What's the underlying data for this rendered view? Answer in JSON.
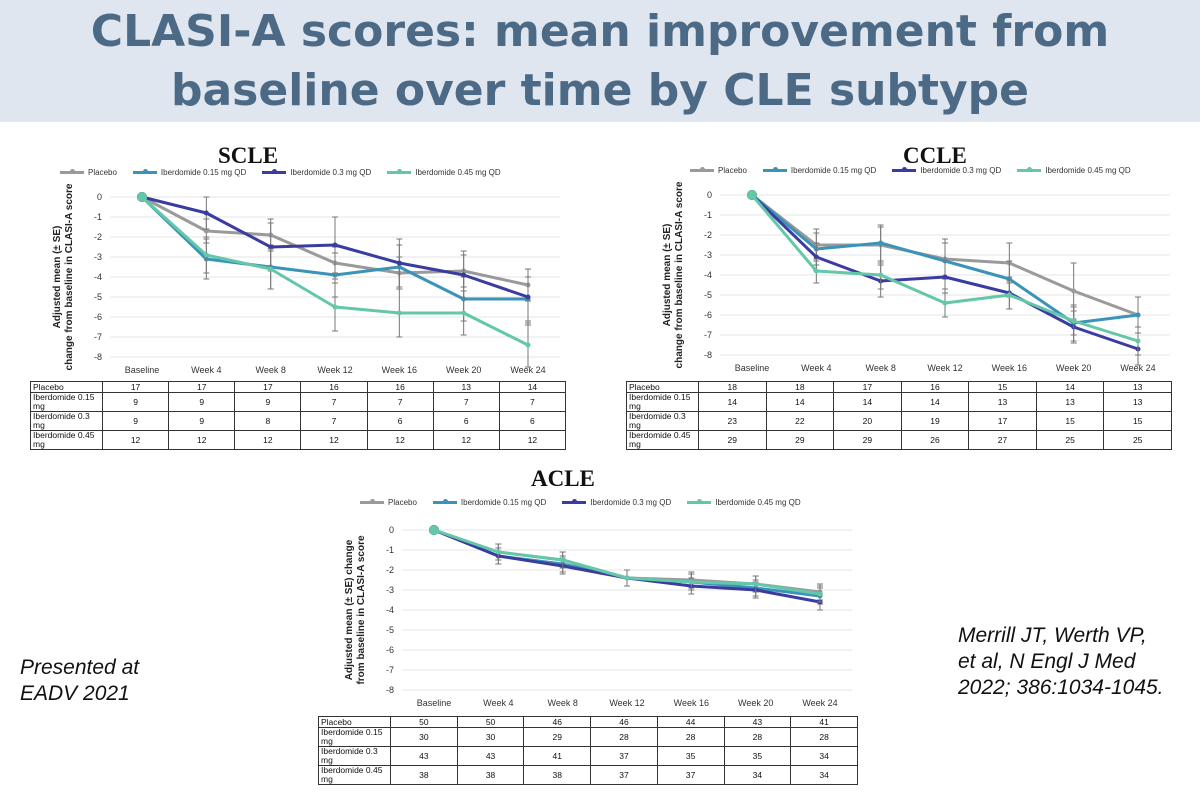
{
  "page": {
    "title_line1": "CLASI-A scores: mean improvement from",
    "title_line2": "baseline over time by CLE subtype",
    "presented": [
      "Presented at",
      "EADV 2021"
    ],
    "reference": [
      "Merrill JT, Werth VP,",
      "et al, N Engl J Med",
      "2022; 386:1034-1045."
    ]
  },
  "colors": {
    "placebo": "#9a9a9a",
    "ibd015": "#3a93b8",
    "ibd03": "#3b3ca0",
    "ibd045": "#63c7a8"
  },
  "legend": [
    "Placebo",
    "Iberdomide 0.15 mg QD",
    "Iberdomide 0.3 mg QD",
    "Iberdomide 0.45 mg QD"
  ],
  "chart_data": [
    {
      "type": "line",
      "title": "SCLE",
      "ylabel": "Adjusted mean (± SE) change from baseline in CLASI-A score",
      "xlabel": "",
      "categories": [
        "Baseline",
        "Week 4",
        "Week 8",
        "Week 12",
        "Week 16",
        "Week 20",
        "Week 24"
      ],
      "ylim": [
        -8,
        0
      ],
      "yticks": [
        0,
        -1,
        -2,
        -3,
        -4,
        -5,
        -6,
        -7,
        -8
      ],
      "legend_position": "top",
      "series": [
        {
          "name": "Placebo",
          "color_key": "placebo",
          "values": [
            0,
            -1.7,
            -1.9,
            -3.3,
            -3.8,
            -3.7,
            -4.4
          ],
          "se": [
            0,
            0.6,
            0.8,
            0.8,
            0.8,
            0.8,
            0.8
          ]
        },
        {
          "name": "Iberdomide 0.15 mg QD",
          "color_key": "ibd015",
          "values": [
            0,
            -3.1,
            -3.5,
            -3.9,
            -3.5,
            -5.1,
            -5.1
          ],
          "se": [
            0,
            1.0,
            1.1,
            1.1,
            1.1,
            1.1,
            1.1
          ]
        },
        {
          "name": "Iberdomide 0.3 mg QD",
          "color_key": "ibd03",
          "values": [
            0,
            -0.8,
            -2.5,
            -2.4,
            -3.3,
            -3.9,
            -5.0
          ],
          "se": [
            0,
            0.8,
            1.2,
            1.4,
            1.2,
            1.2,
            1.4
          ]
        },
        {
          "name": "Iberdomide 0.45 mg QD",
          "color_key": "ibd045",
          "values": [
            0,
            -2.9,
            -3.6,
            -5.5,
            -5.8,
            -5.8,
            -7.4
          ],
          "se": [
            0,
            0.9,
            1.0,
            1.2,
            1.2,
            1.1,
            1.1
          ]
        }
      ],
      "n_table": [
        {
          "label": "Placebo",
          "values": [
            "17",
            "17",
            "17",
            "16",
            "16",
            "13",
            "14"
          ]
        },
        {
          "label": "Iberdomide 0.15 mg",
          "values": [
            "9",
            "9",
            "9",
            "7",
            "7",
            "7",
            "7"
          ]
        },
        {
          "label": "Iberdomide 0.3 mg",
          "values": [
            "9",
            "9",
            "8",
            "7",
            "6",
            "6",
            "6"
          ]
        },
        {
          "label": "Iberdomide 0.45 mg",
          "values": [
            "12",
            "12",
            "12",
            "12",
            "12",
            "12",
            "12"
          ]
        }
      ]
    },
    {
      "type": "line",
      "title": "CCLE",
      "ylabel": "Adjusted mean (± SE) change from baseline in CLASI-A score",
      "xlabel": "",
      "categories": [
        "Baseline",
        "Week 4",
        "Week 8",
        "Week 12",
        "Week 16",
        "Week 20",
        "Week 24"
      ],
      "ylim": [
        -8,
        0
      ],
      "yticks": [
        0,
        -1,
        -2,
        -3,
        -4,
        -5,
        -6,
        -7,
        -8
      ],
      "legend_position": "top",
      "series": [
        {
          "name": "Placebo",
          "color_key": "placebo",
          "values": [
            0,
            -2.5,
            -2.5,
            -3.2,
            -3.4,
            -4.8,
            -6.0
          ],
          "se": [
            0,
            0.8,
            0.9,
            1.0,
            1.0,
            1.4,
            0.9
          ]
        },
        {
          "name": "Iberdomide 0.15 mg QD",
          "color_key": "ibd015",
          "values": [
            0,
            -2.7,
            -2.4,
            -3.3,
            -4.2,
            -6.4,
            -6.0
          ],
          "se": [
            0,
            0.8,
            0.9,
            0.9,
            0.9,
            0.9,
            0.9
          ]
        },
        {
          "name": "Iberdomide 0.3 mg QD",
          "color_key": "ibd03",
          "values": [
            0,
            -3.1,
            -4.3,
            -4.1,
            -4.9,
            -6.6,
            -7.7
          ],
          "se": [
            0,
            0.7,
            0.8,
            0.8,
            0.8,
            0.8,
            0.8
          ]
        },
        {
          "name": "Iberdomide 0.45 mg QD",
          "color_key": "ibd045",
          "values": [
            0,
            -3.8,
            -4.0,
            -5.4,
            -5.0,
            -6.3,
            -7.3
          ],
          "se": [
            0,
            0.6,
            0.7,
            0.7,
            0.7,
            0.7,
            0.7
          ]
        }
      ],
      "n_table": [
        {
          "label": "Placebo",
          "values": [
            "18",
            "18",
            "17",
            "16",
            "15",
            "14",
            "13"
          ]
        },
        {
          "label": "Iberdomide 0.15 mg",
          "values": [
            "14",
            "14",
            "14",
            "14",
            "13",
            "13",
            "13"
          ]
        },
        {
          "label": "Iberdomide 0.3 mg",
          "values": [
            "23",
            "22",
            "20",
            "19",
            "17",
            "15",
            "15"
          ]
        },
        {
          "label": "Iberdomide 0.45 mg",
          "values": [
            "29",
            "29",
            "29",
            "26",
            "27",
            "25",
            "25"
          ]
        }
      ]
    },
    {
      "type": "line",
      "title": "ACLE",
      "ylabel": "Adjusted mean (± SE) change from baseline in CLASI-A score",
      "xlabel": "",
      "categories": [
        "Baseline",
        "Week 4",
        "Week 8",
        "Week 12",
        "Week 16",
        "Week 20",
        "Week 24"
      ],
      "ylim": [
        -8,
        0
      ],
      "yticks": [
        0,
        -1,
        -2,
        -3,
        -4,
        -5,
        -6,
        -7,
        -8
      ],
      "legend_position": "top",
      "series": [
        {
          "name": "Placebo",
          "color_key": "placebo",
          "values": [
            0,
            -1.1,
            -1.5,
            -2.4,
            -2.5,
            -2.7,
            -3.1
          ],
          "se": [
            0,
            0.4,
            0.4,
            0.4,
            0.4,
            0.4,
            0.4
          ]
        },
        {
          "name": "Iberdomide 0.15 mg QD",
          "color_key": "ibd015",
          "values": [
            0,
            -1.3,
            -1.7,
            -2.4,
            -2.6,
            -2.9,
            -3.3
          ],
          "se": [
            0,
            0.4,
            0.4,
            0.4,
            0.4,
            0.4,
            0.4
          ]
        },
        {
          "name": "Iberdomide 0.3 mg QD",
          "color_key": "ibd03",
          "values": [
            0,
            -1.3,
            -1.8,
            -2.4,
            -2.8,
            -3.0,
            -3.6
          ],
          "se": [
            0,
            0.4,
            0.4,
            0.4,
            0.4,
            0.4,
            0.4
          ]
        },
        {
          "name": "Iberdomide 0.45 mg QD",
          "color_key": "ibd045",
          "values": [
            0,
            -1.1,
            -1.5,
            -2.4,
            -2.6,
            -2.7,
            -3.2
          ],
          "se": [
            0,
            0.4,
            0.4,
            0.4,
            0.4,
            0.4,
            0.4
          ]
        }
      ],
      "n_table": [
        {
          "label": "Placebo",
          "values": [
            "50",
            "50",
            "46",
            "46",
            "44",
            "43",
            "41"
          ]
        },
        {
          "label": "Iberdomide 0.15 mg",
          "values": [
            "30",
            "30",
            "29",
            "28",
            "28",
            "28",
            "28"
          ]
        },
        {
          "label": "Iberdomide 0.3 mg",
          "values": [
            "43",
            "43",
            "41",
            "37",
            "35",
            "35",
            "34"
          ]
        },
        {
          "label": "Iberdomide 0.45 mg",
          "values": [
            "38",
            "38",
            "38",
            "37",
            "37",
            "34",
            "34"
          ]
        }
      ]
    }
  ]
}
